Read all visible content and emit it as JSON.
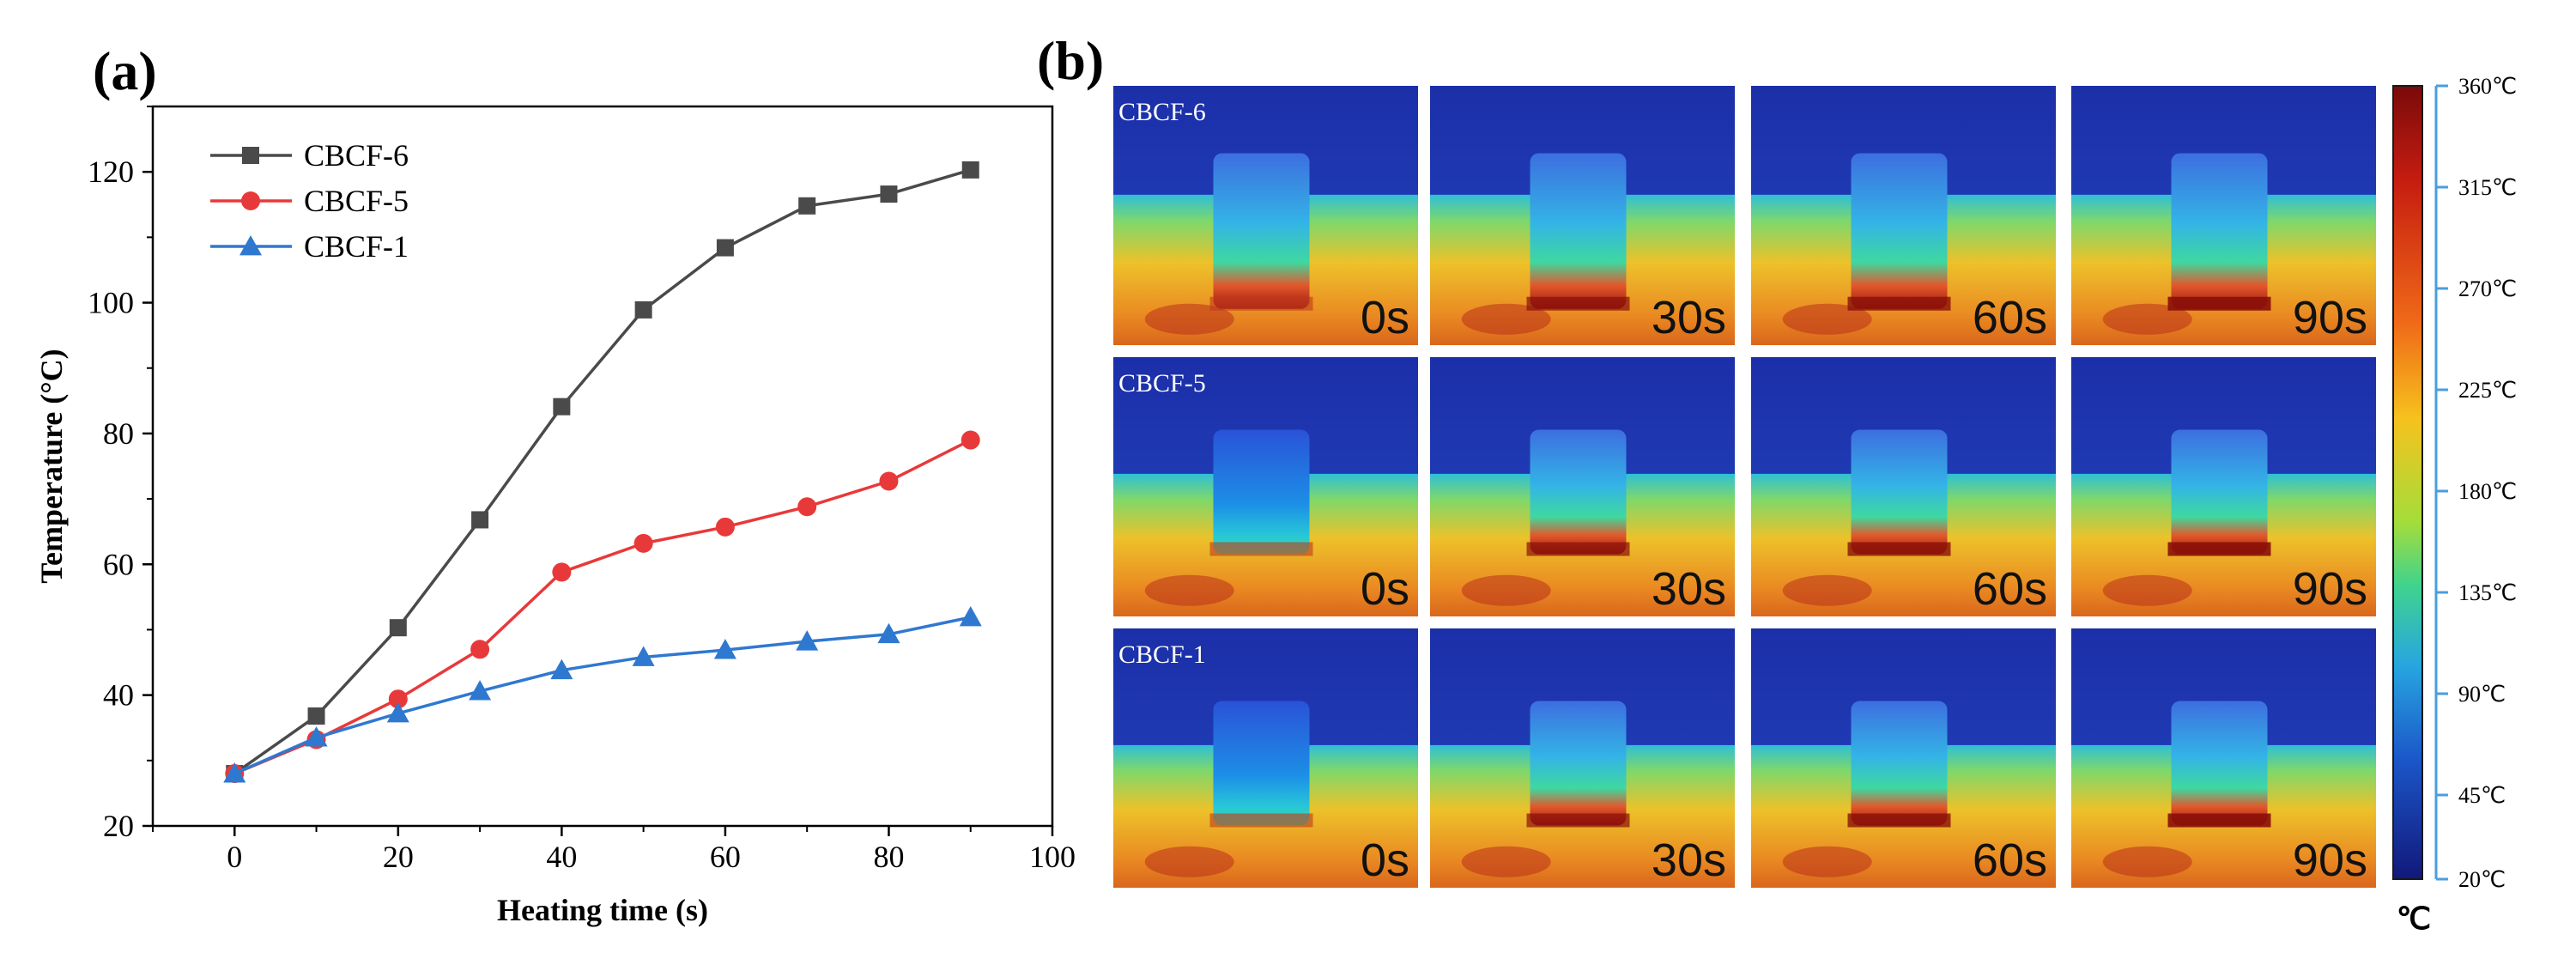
{
  "panel_a": {
    "label": "(a)",
    "chart_data": {
      "type": "line",
      "title": "",
      "xlabel": "Heating time (s)",
      "ylabel": "Temperature (°C)",
      "xlim": [
        -10,
        100
      ],
      "ylim": [
        20,
        130
      ],
      "x_ticks": [
        0,
        20,
        40,
        60,
        80,
        100
      ],
      "y_ticks": [
        20,
        40,
        60,
        80,
        100,
        120
      ],
      "x": [
        0,
        10,
        20,
        30,
        40,
        50,
        60,
        70,
        80,
        90
      ],
      "legend_position": "top-left",
      "series": [
        {
          "name": "CBCF-6",
          "color": "#4a4a4a",
          "marker": "square",
          "values": [
            28,
            36.8,
            50.3,
            66.8,
            84.1,
            98.9,
            108.4,
            114.8,
            116.6,
            120.3
          ]
        },
        {
          "name": "CBCF-5",
          "color": "#e8393a",
          "marker": "circle",
          "values": [
            28,
            33.2,
            39.4,
            47.0,
            58.8,
            63.2,
            65.7,
            68.8,
            72.7,
            79.0
          ]
        },
        {
          "name": "CBCF-1",
          "color": "#2f78d0",
          "marker": "triangle",
          "values": [
            28,
            33.5,
            37.2,
            40.6,
            43.8,
            45.8,
            46.9,
            48.2,
            49.3,
            51.9
          ]
        }
      ]
    }
  },
  "panel_b": {
    "label": "(b)",
    "rows": [
      {
        "sample": "CBCF-6",
        "times": [
          "0s",
          "30s",
          "60s",
          "90s"
        ]
      },
      {
        "sample": "CBCF-5",
        "times": [
          "0s",
          "30s",
          "60s",
          "90s"
        ]
      },
      {
        "sample": "CBCF-1",
        "times": [
          "0s",
          "30s",
          "60s",
          "90s"
        ]
      }
    ],
    "colorbar": {
      "ticks": [
        "360℃",
        "315℃",
        "270℃",
        "225℃",
        "180℃",
        "135℃",
        "90℃",
        "45℃",
        "20℃"
      ],
      "unit": "℃"
    }
  }
}
